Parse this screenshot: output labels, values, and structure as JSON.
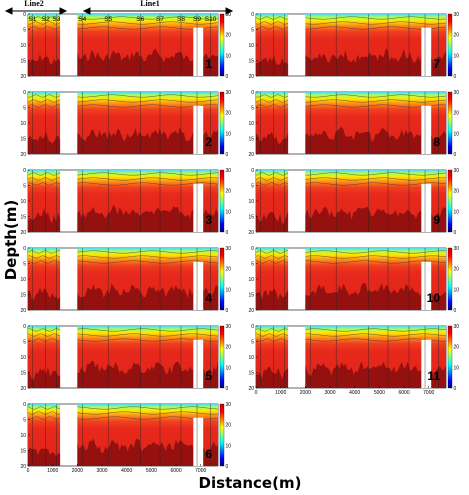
{
  "figure": {
    "ylabel": "Depth(m)",
    "xlabel": "Distance(m)",
    "line2_label": "Line2",
    "line1_label": "Line1"
  },
  "chart_data": {
    "type": "heatmap",
    "xlabel": "Distance(m)",
    "ylabel": "Depth(m)",
    "x_range": [
      0,
      7700
    ],
    "y_range": [
      0,
      20
    ],
    "y_reversed": true,
    "x_ticks": [
      "0",
      "1000",
      "2000",
      "3000",
      "4000",
      "5000",
      "6000",
      "7000"
    ],
    "y_ticks": [
      "0",
      "5",
      "10",
      "15",
      "20"
    ],
    "colorbar_range": [
      0,
      30
    ],
    "colorbar_ticks": [
      "30",
      "20",
      "10",
      "0"
    ],
    "colormap": [
      "#00007f",
      "#0000ff",
      "#007fff",
      "#00ffff",
      "#7fff7f",
      "#ffff00",
      "#ff7f00",
      "#ff0000",
      "#c80000"
    ],
    "water_color": "#e8291c",
    "bottom_color": "#8c1010",
    "line_groups": [
      {
        "name": "Line2",
        "x_start": 0,
        "x_end": 1300
      },
      {
        "name": "Line1",
        "x_start": 2000,
        "x_end": 7700
      }
    ],
    "stations": [
      {
        "label": "S1",
        "x": 180
      },
      {
        "label": "S2",
        "x": 720
      },
      {
        "label": "S3",
        "x": 1150
      },
      {
        "label": "S4",
        "x": 2200
      },
      {
        "label": "S5",
        "x": 3250
      },
      {
        "label": "S6",
        "x": 4550
      },
      {
        "label": "S7",
        "x": 5350
      },
      {
        "label": "S8",
        "x": 6200
      },
      {
        "label": "S9",
        "x": 6850
      },
      {
        "label": "S10",
        "x": 7400
      }
    ],
    "panels": [
      {
        "label": "1"
      },
      {
        "label": "2"
      },
      {
        "label": "3"
      },
      {
        "label": "4"
      },
      {
        "label": "5"
      },
      {
        "label": "6"
      },
      {
        "label": "7"
      },
      {
        "label": "8"
      },
      {
        "label": "9"
      },
      {
        "label": "10"
      },
      {
        "label": "11"
      }
    ]
  }
}
